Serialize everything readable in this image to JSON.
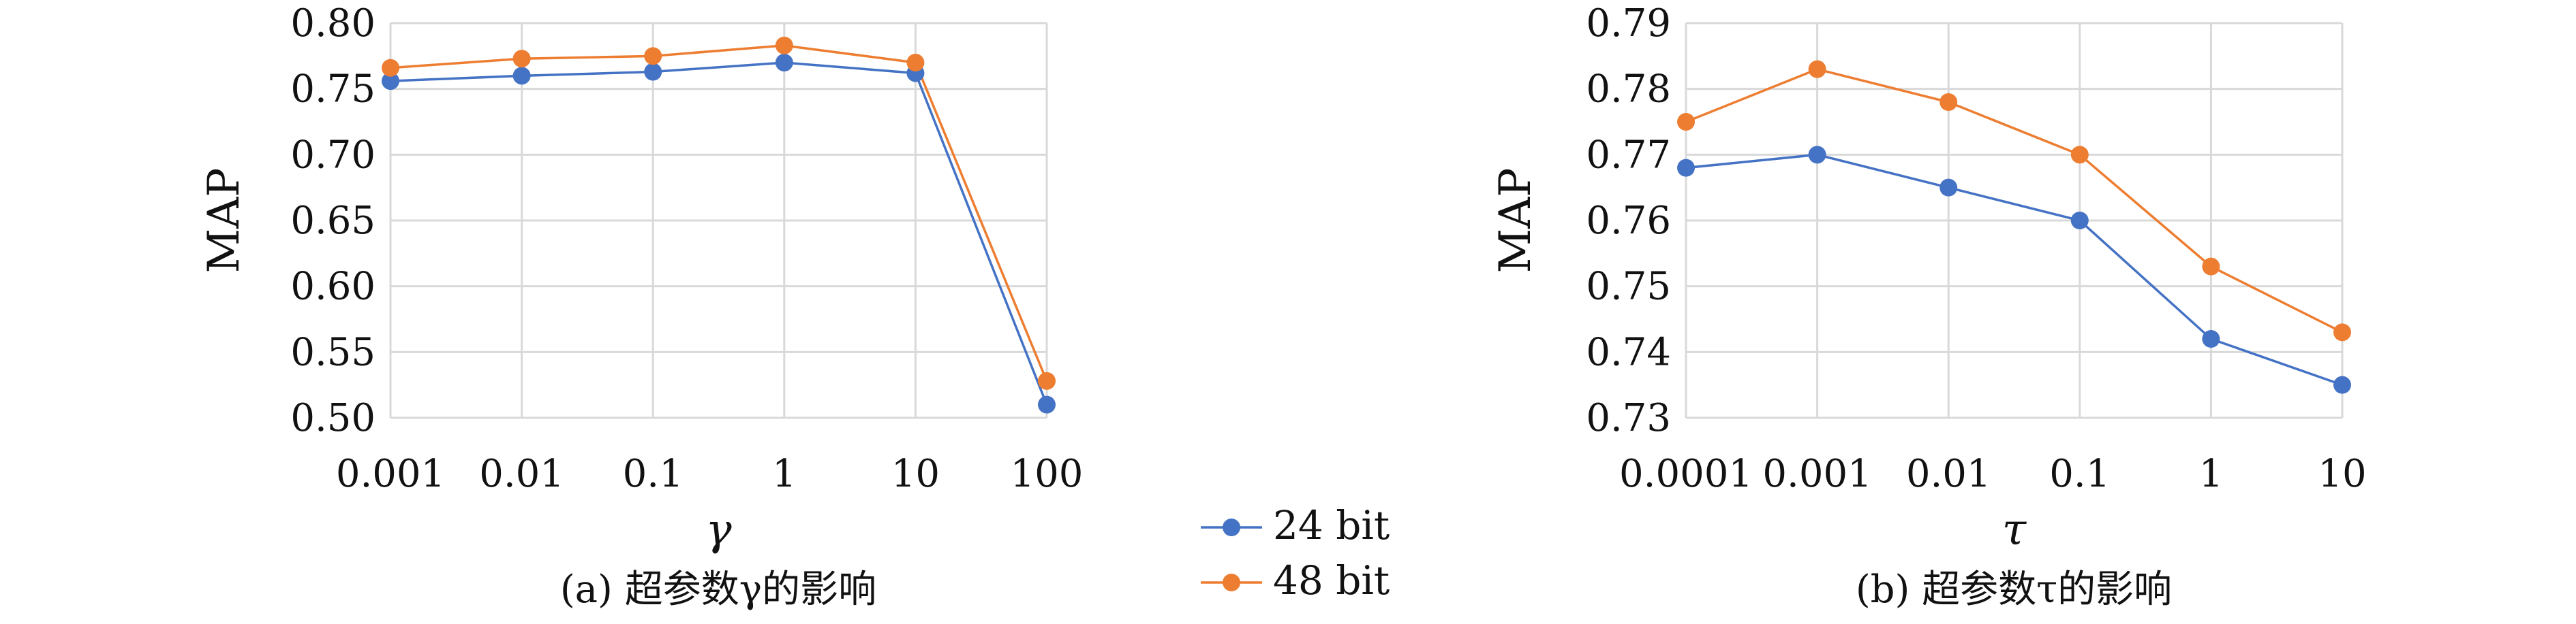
{
  "chart_data": [
    {
      "type": "line",
      "categories": [
        "0.001",
        "0.01",
        "0.1",
        "1",
        "10",
        "100"
      ],
      "xlabel": "γ",
      "ylabel": "MAP",
      "ylim": [
        0.5,
        0.8
      ],
      "yticks": [
        "0.80",
        "0.75",
        "0.70",
        "0.65",
        "0.60",
        "0.55",
        "0.50"
      ],
      "ytick_values": [
        0.8,
        0.75,
        0.7,
        0.65,
        0.6,
        0.55,
        0.5
      ],
      "grid": true,
      "caption": "(a) 超参数γ的影响",
      "series": [
        {
          "name": "24 bit",
          "color": "#4472c4",
          "values": [
            0.756,
            0.76,
            0.763,
            0.77,
            0.762,
            0.51
          ]
        },
        {
          "name": "48 bit",
          "color": "#ed7d31",
          "values": [
            0.766,
            0.773,
            0.775,
            0.783,
            0.77,
            0.528
          ]
        }
      ]
    },
    {
      "type": "line",
      "categories": [
        "0.0001",
        "0.001",
        "0.01",
        "0.1",
        "1",
        "10"
      ],
      "xlabel": "τ",
      "ylabel": "MAP",
      "ylim": [
        0.73,
        0.79
      ],
      "yticks": [
        "0.79",
        "0.78",
        "0.77",
        "0.76",
        "0.75",
        "0.74",
        "0.73"
      ],
      "ytick_values": [
        0.79,
        0.78,
        0.77,
        0.76,
        0.75,
        0.74,
        0.73
      ],
      "grid": true,
      "caption": "(b) 超参数τ的影响",
      "series": [
        {
          "name": "24 bit",
          "color": "#4472c4",
          "values": [
            0.768,
            0.77,
            0.765,
            0.76,
            0.742,
            0.735
          ]
        },
        {
          "name": "48 bit",
          "color": "#ed7d31",
          "values": [
            0.775,
            0.783,
            0.778,
            0.77,
            0.753,
            0.743
          ]
        }
      ]
    }
  ],
  "legend": {
    "placement": "bottom-center",
    "items": [
      {
        "label": "24 bit",
        "color": "#4472c4"
      },
      {
        "label": "48 bit",
        "color": "#ed7d31"
      }
    ]
  }
}
